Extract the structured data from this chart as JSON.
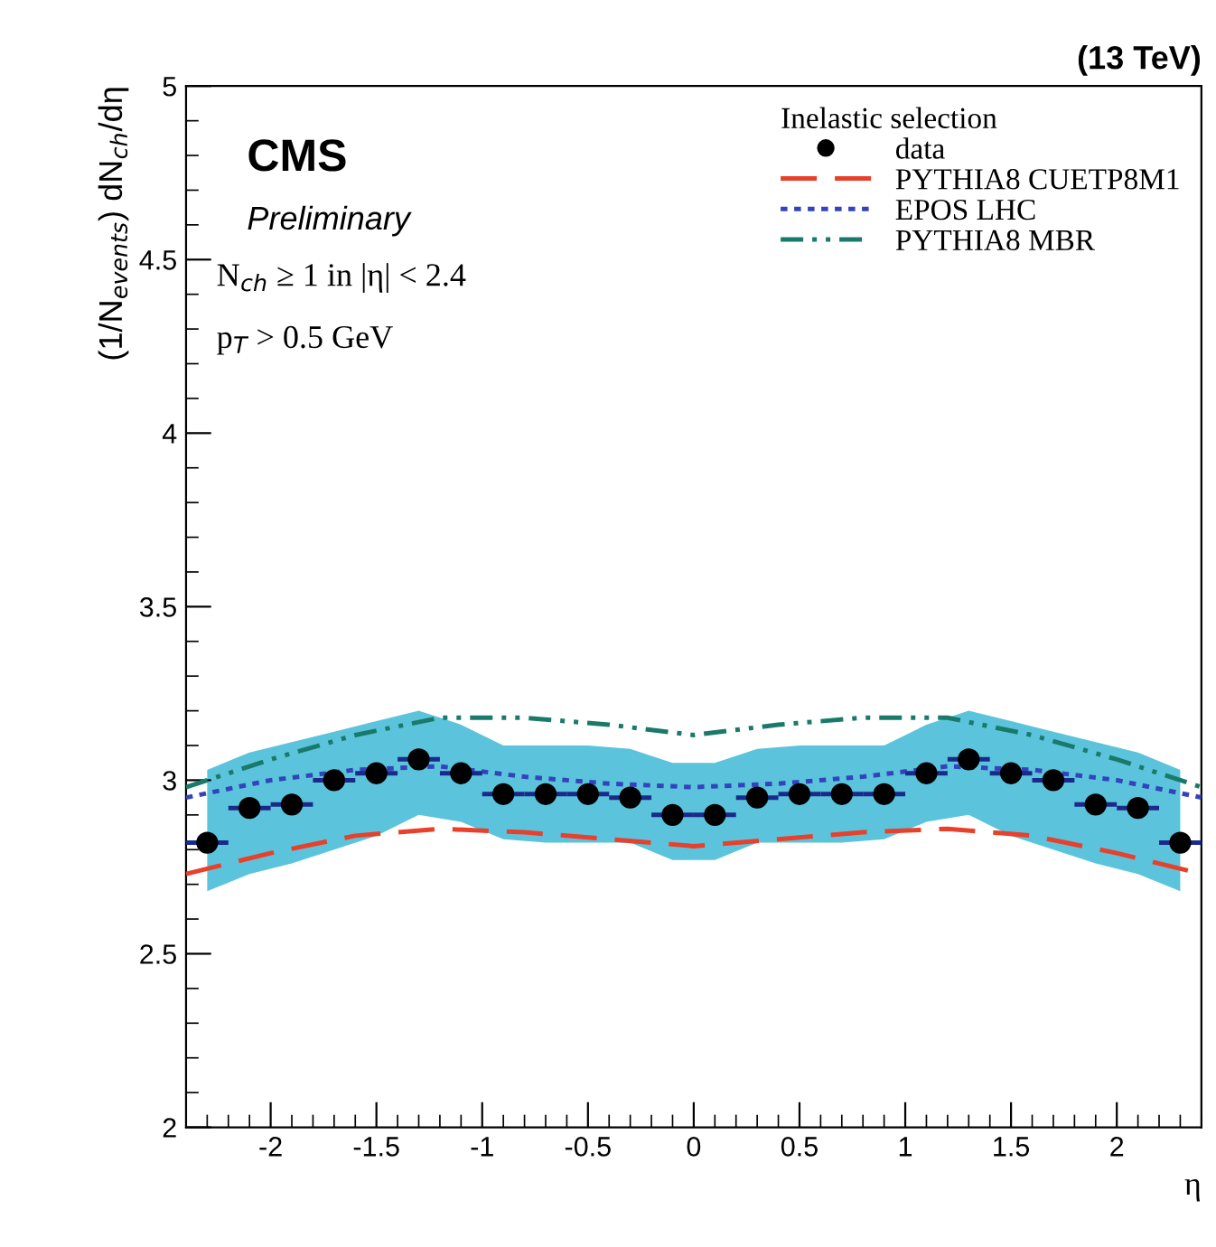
{
  "chart_data": {
    "type": "scatter",
    "xlabel": "η",
    "ylabel": "(1/N$_{events}$) dN$_{ch}$/dη",
    "legend_title": "Inelastic selection",
    "annotations": [
      "(13 TeV)",
      "CMS",
      "Preliminary",
      "N$_{ch}$ ≥ 1 in |η| < 2.4",
      "p$_{T}$ > 0.5 GeV"
    ],
    "xlim": [
      -2.4,
      2.4
    ],
    "ylim": [
      2,
      5
    ],
    "xticks": [
      -2,
      -1.5,
      -1,
      -0.5,
      0,
      0.5,
      1,
      1.5,
      2
    ],
    "yticks": [
      2,
      2.5,
      3,
      3.5,
      4,
      4.5,
      5
    ],
    "grid": false,
    "legend": "top right",
    "series": [
      {
        "name": "data",
        "color": "#000000",
        "marker": "circle",
        "x": [
          -2.3,
          -2.1,
          -1.9,
          -1.7,
          -1.5,
          -1.3,
          -1.1,
          -0.9,
          -0.7,
          -0.5,
          -0.3,
          -0.1,
          0.1,
          0.3,
          0.5,
          0.7,
          0.9,
          1.1,
          1.3,
          1.5,
          1.7,
          1.9,
          2.1,
          2.3
        ],
        "values": [
          2.82,
          2.92,
          2.93,
          3.0,
          3.02,
          3.06,
          3.02,
          2.96,
          2.96,
          2.96,
          2.95,
          2.9,
          2.9,
          2.95,
          2.96,
          2.96,
          2.96,
          3.02,
          3.06,
          3.02,
          3.0,
          2.93,
          2.92,
          2.82
        ],
        "xerrors": [
          0.1,
          0.1,
          0.1,
          0.1,
          0.1,
          0.1,
          0.1,
          0.1,
          0.1,
          0.1,
          0.1,
          0.1,
          0.1,
          0.1,
          0.1,
          0.1,
          0.1,
          0.1,
          0.1,
          0.1,
          0.1,
          0.1,
          0.1,
          0.1
        ],
        "lower": [
          2.68,
          2.73,
          2.76,
          2.8,
          2.84,
          2.9,
          2.88,
          2.83,
          2.82,
          2.82,
          2.82,
          2.77,
          2.77,
          2.82,
          2.82,
          2.82,
          2.83,
          2.88,
          2.9,
          2.84,
          2.8,
          2.76,
          2.73,
          2.68
        ],
        "upper": [
          3.03,
          3.08,
          3.11,
          3.14,
          3.17,
          3.2,
          3.16,
          3.1,
          3.1,
          3.1,
          3.09,
          3.05,
          3.05,
          3.09,
          3.1,
          3.1,
          3.1,
          3.16,
          3.2,
          3.17,
          3.14,
          3.11,
          3.08,
          3.03
        ]
      },
      {
        "name": "PYTHIA8 CUETP8M1",
        "type": "line",
        "color": "#e8402a",
        "line_style": "dashed",
        "x": [
          -2.4,
          -2.0,
          -1.6,
          -1.2,
          -0.8,
          -0.4,
          0,
          0.4,
          0.8,
          1.2,
          1.6,
          2.0,
          2.4
        ],
        "values": [
          2.73,
          2.79,
          2.84,
          2.86,
          2.85,
          2.83,
          2.81,
          2.83,
          2.85,
          2.86,
          2.84,
          2.79,
          2.73
        ]
      },
      {
        "name": "EPOS LHC",
        "type": "line",
        "color": "#3344bb",
        "line_style": "dotted",
        "x": [
          -2.4,
          -2.0,
          -1.6,
          -1.2,
          -0.8,
          -0.4,
          0,
          0.4,
          0.8,
          1.2,
          1.6,
          2.0,
          2.4
        ],
        "values": [
          2.95,
          3.0,
          3.03,
          3.04,
          3.01,
          2.99,
          2.98,
          2.99,
          3.01,
          3.04,
          3.03,
          3.0,
          2.95
        ]
      },
      {
        "name": "PYTHIA8 MBR",
        "type": "line",
        "color": "#1a7a6a",
        "line_style": "dashdot",
        "x": [
          -2.4,
          -2.0,
          -1.6,
          -1.2,
          -0.8,
          -0.4,
          0,
          0.4,
          0.8,
          1.2,
          1.6,
          2.0,
          2.4
        ],
        "values": [
          2.98,
          3.06,
          3.13,
          3.18,
          3.18,
          3.16,
          3.13,
          3.16,
          3.18,
          3.18,
          3.13,
          3.06,
          2.98
        ]
      }
    ]
  }
}
